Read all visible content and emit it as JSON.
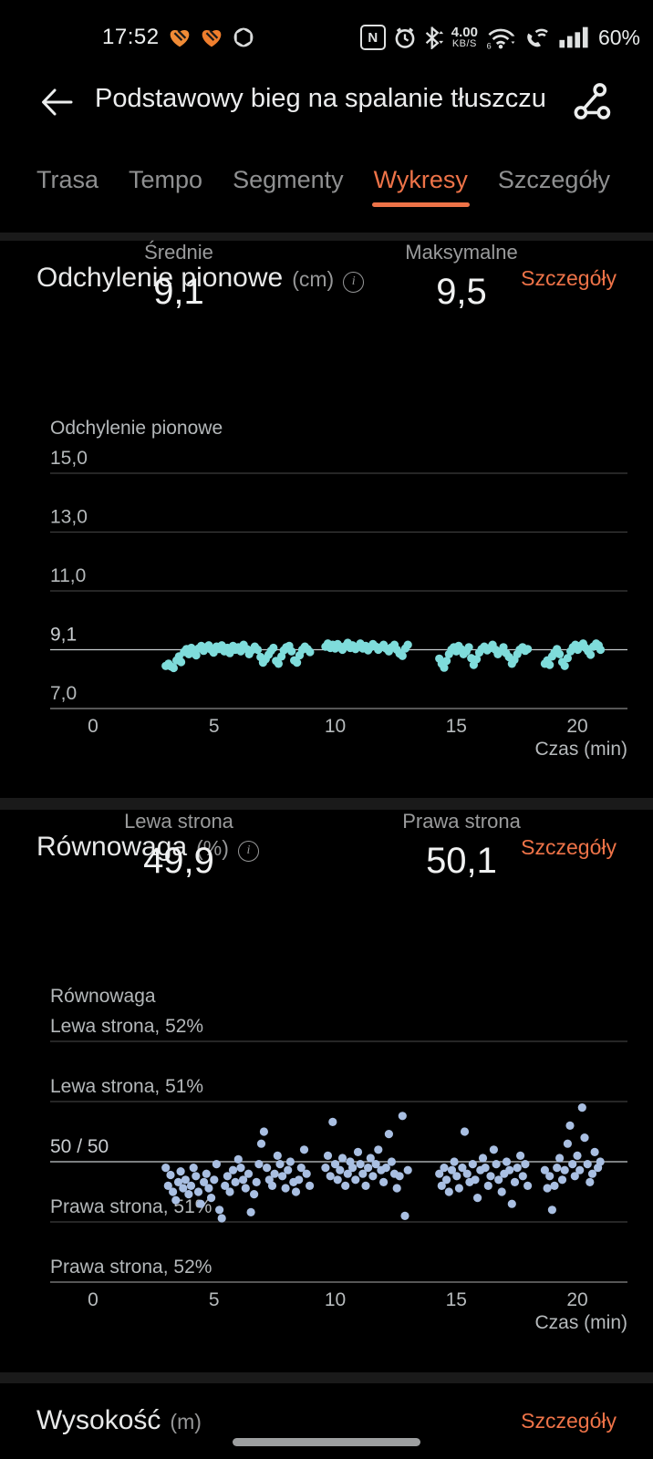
{
  "accent": "#ee7348",
  "status_bar": {
    "time": "17:52",
    "nfc_letter": "N",
    "net_speed_value": "4.00",
    "net_speed_unit": "KB/S",
    "wifi_number": "6",
    "battery": "60%"
  },
  "header": {
    "title": "Podstawowy bieg na spalanie tłuszczu"
  },
  "tabs": {
    "items": [
      {
        "label": "Trasa",
        "active": false
      },
      {
        "label": "Tempo",
        "active": false
      },
      {
        "label": "Segmenty",
        "active": false
      },
      {
        "label": "Wykresy",
        "active": true
      },
      {
        "label": "Szczegóły",
        "active": false
      }
    ]
  },
  "cards": [
    {
      "title": "Odchylenie pionowe",
      "unit": "(cm)",
      "details_label": "Szczegóły",
      "stats": [
        {
          "label": "Średnie",
          "value": "9,1"
        },
        {
          "label": "Maksymalne",
          "value": "9,5"
        }
      ]
    },
    {
      "title": "Równowaga",
      "unit": "(%)",
      "details_label": "Szczegóły",
      "stats": [
        {
          "label": "Lewa strona",
          "value": "49,9"
        },
        {
          "label": "Prawa strona",
          "value": "50,1"
        }
      ]
    }
  ],
  "partial_card": {
    "title": "Wysokość",
    "unit": "(m)",
    "details_label": "Szczegóły"
  },
  "chart_data": [
    {
      "type": "scatter",
      "title": "Odchylenie pionowe",
      "xlabel": "Czas (min)",
      "x_ticks": [
        0,
        5,
        10,
        15,
        20
      ],
      "x_range": [
        0,
        21.5
      ],
      "color": "#7fdcdb",
      "grid": true,
      "average": 9.1,
      "maximum": 9.5,
      "y_gridlines": [
        {
          "label": "15,0",
          "value": 15.0
        },
        {
          "label": "13,0",
          "value": 13.0
        },
        {
          "label": "11,0",
          "value": 11.0
        },
        {
          "label": "9,1",
          "value": 9.1,
          "highlight": true
        },
        {
          "label": "7,0",
          "value": 7.0
        }
      ],
      "points": [
        [
          3.0,
          8.52
        ],
        [
          3.12,
          8.6
        ],
        [
          3.22,
          8.5
        ],
        [
          3.33,
          8.45
        ],
        [
          3.45,
          8.72
        ],
        [
          3.55,
          8.86
        ],
        [
          3.64,
          8.66
        ],
        [
          3.76,
          9.02
        ],
        [
          3.86,
          9.12
        ],
        [
          3.96,
          8.94
        ],
        [
          4.06,
          9.16
        ],
        [
          4.16,
          9.0
        ],
        [
          4.26,
          8.9
        ],
        [
          4.36,
          9.14
        ],
        [
          4.47,
          9.22
        ],
        [
          4.57,
          9.06
        ],
        [
          4.67,
          9.18
        ],
        [
          4.78,
          9.24
        ],
        [
          4.88,
          9.1
        ],
        [
          4.98,
          9.0
        ],
        [
          5.1,
          9.2
        ],
        [
          5.2,
          9.12
        ],
        [
          5.32,
          9.24
        ],
        [
          5.42,
          9.04
        ],
        [
          5.55,
          9.16
        ],
        [
          5.65,
          8.98
        ],
        [
          5.78,
          9.22
        ],
        [
          5.88,
          9.1
        ],
        [
          6.0,
          9.18
        ],
        [
          6.1,
          9.04
        ],
        [
          6.22,
          9.26
        ],
        [
          6.35,
          9.12
        ],
        [
          6.45,
          8.94
        ],
        [
          6.55,
          9.08
        ],
        [
          6.68,
          9.2
        ],
        [
          6.8,
          9.1
        ],
        [
          6.92,
          8.84
        ],
        [
          7.02,
          8.64
        ],
        [
          7.13,
          8.76
        ],
        [
          7.25,
          8.92
        ],
        [
          7.35,
          9.06
        ],
        [
          7.45,
          9.16
        ],
        [
          7.56,
          8.7
        ],
        [
          7.66,
          8.6
        ],
        [
          7.78,
          8.86
        ],
        [
          7.88,
          9.08
        ],
        [
          7.98,
          9.18
        ],
        [
          8.1,
          9.22
        ],
        [
          8.2,
          9.04
        ],
        [
          8.31,
          8.72
        ],
        [
          8.42,
          8.64
        ],
        [
          8.53,
          8.9
        ],
        [
          8.64,
          9.1
        ],
        [
          8.75,
          9.2
        ],
        [
          8.86,
          9.12
        ],
        [
          8.96,
          9.02
        ],
        [
          9.6,
          9.2
        ],
        [
          9.7,
          9.3
        ],
        [
          9.8,
          9.16
        ],
        [
          9.9,
          9.26
        ],
        [
          10.0,
          9.14
        ],
        [
          10.1,
          9.28
        ],
        [
          10.2,
          9.2
        ],
        [
          10.3,
          9.1
        ],
        [
          10.42,
          9.22
        ],
        [
          10.52,
          9.32
        ],
        [
          10.62,
          9.16
        ],
        [
          10.72,
          9.24
        ],
        [
          10.84,
          9.12
        ],
        [
          10.94,
          9.2
        ],
        [
          11.04,
          9.3
        ],
        [
          11.14,
          9.14
        ],
        [
          11.26,
          9.22
        ],
        [
          11.36,
          9.08
        ],
        [
          11.46,
          9.18
        ],
        [
          11.56,
          9.28
        ],
        [
          11.68,
          9.2
        ],
        [
          11.78,
          9.1
        ],
        [
          11.9,
          9.18
        ],
        [
          12.0,
          9.26
        ],
        [
          12.1,
          9.14
        ],
        [
          12.22,
          9.04
        ],
        [
          12.33,
          9.18
        ],
        [
          12.45,
          9.26
        ],
        [
          12.55,
          9.1
        ],
        [
          12.66,
          8.96
        ],
        [
          12.78,
          8.88
        ],
        [
          12.9,
          9.14
        ],
        [
          13.0,
          9.26
        ],
        [
          14.3,
          8.78
        ],
        [
          14.4,
          8.6
        ],
        [
          14.5,
          8.46
        ],
        [
          14.6,
          8.7
        ],
        [
          14.7,
          8.94
        ],
        [
          14.8,
          9.1
        ],
        [
          14.9,
          9.18
        ],
        [
          15.0,
          9.04
        ],
        [
          15.1,
          9.22
        ],
        [
          15.2,
          9.12
        ],
        [
          15.3,
          8.94
        ],
        [
          15.42,
          9.04
        ],
        [
          15.52,
          9.18
        ],
        [
          15.62,
          8.8
        ],
        [
          15.72,
          8.56
        ],
        [
          15.84,
          8.76
        ],
        [
          15.95,
          9.0
        ],
        [
          16.05,
          9.12
        ],
        [
          16.16,
          9.2
        ],
        [
          16.28,
          9.08
        ],
        [
          16.4,
          9.16
        ],
        [
          16.5,
          9.26
        ],
        [
          16.62,
          9.1
        ],
        [
          16.72,
          8.94
        ],
        [
          16.84,
          9.04
        ],
        [
          16.95,
          9.18
        ],
        [
          17.06,
          8.98
        ],
        [
          17.18,
          8.84
        ],
        [
          17.3,
          8.6
        ],
        [
          17.4,
          8.74
        ],
        [
          17.52,
          8.94
        ],
        [
          17.62,
          9.1
        ],
        [
          17.74,
          9.18
        ],
        [
          17.85,
          9.06
        ],
        [
          17.95,
          9.12
        ],
        [
          18.66,
          8.6
        ],
        [
          18.76,
          8.72
        ],
        [
          18.86,
          8.56
        ],
        [
          18.96,
          8.86
        ],
        [
          19.06,
          9.0
        ],
        [
          19.16,
          9.12
        ],
        [
          19.27,
          8.94
        ],
        [
          19.38,
          8.66
        ],
        [
          19.48,
          8.52
        ],
        [
          19.6,
          8.8
        ],
        [
          19.72,
          9.04
        ],
        [
          19.82,
          9.18
        ],
        [
          19.92,
          9.26
        ],
        [
          20.02,
          9.1
        ],
        [
          20.12,
          9.22
        ],
        [
          20.24,
          9.3
        ],
        [
          20.34,
          9.16
        ],
        [
          20.45,
          9.04
        ],
        [
          20.55,
          8.92
        ],
        [
          20.66,
          9.2
        ],
        [
          20.78,
          9.3
        ],
        [
          20.88,
          9.24
        ],
        [
          20.96,
          9.1
        ]
      ]
    },
    {
      "type": "scatter",
      "title": "Równowaga",
      "xlabel": "Czas (min)",
      "x_ticks": [
        0,
        5,
        10,
        15,
        20
      ],
      "x_range": [
        0,
        21.5
      ],
      "color": "#a9bfe2",
      "grid": true,
      "left_avg": 49.9,
      "right_avg": 50.1,
      "y_gridlines": [
        {
          "label": "Lewa strona, 52%",
          "value": 52
        },
        {
          "label": "Lewa strona, 51%",
          "value": 51
        },
        {
          "label": "50 / 50",
          "value": 50,
          "highlight": true
        },
        {
          "label": "Prawa strona, 51%",
          "value": 49
        },
        {
          "label": "Prawa strona, 52%",
          "value": 48
        }
      ],
      "points": [
        [
          3.0,
          49.9
        ],
        [
          3.1,
          49.6
        ],
        [
          3.2,
          49.78
        ],
        [
          3.3,
          49.5
        ],
        [
          3.42,
          49.36
        ],
        [
          3.52,
          49.66
        ],
        [
          3.62,
          49.84
        ],
        [
          3.72,
          49.56
        ],
        [
          3.82,
          49.7
        ],
        [
          3.95,
          49.46
        ],
        [
          4.05,
          49.6
        ],
        [
          4.15,
          49.9
        ],
        [
          4.25,
          49.76
        ],
        [
          4.35,
          49.5
        ],
        [
          4.45,
          49.3
        ],
        [
          4.58,
          49.66
        ],
        [
          4.68,
          49.8
        ],
        [
          4.78,
          49.56
        ],
        [
          4.88,
          49.4
        ],
        [
          5.0,
          49.7
        ],
        [
          5.1,
          49.96
        ],
        [
          5.22,
          49.2
        ],
        [
          5.32,
          49.06
        ],
        [
          5.45,
          49.6
        ],
        [
          5.55,
          49.76
        ],
        [
          5.65,
          49.5
        ],
        [
          5.78,
          49.86
        ],
        [
          5.88,
          49.66
        ],
        [
          6.0,
          50.04
        ],
        [
          6.1,
          49.9
        ],
        [
          6.2,
          49.7
        ],
        [
          6.3,
          49.56
        ],
        [
          6.42,
          49.8
        ],
        [
          6.52,
          49.16
        ],
        [
          6.65,
          49.46
        ],
        [
          6.75,
          49.66
        ],
        [
          6.85,
          49.96
        ],
        [
          6.95,
          50.3
        ],
        [
          7.06,
          50.5
        ],
        [
          7.18,
          49.9
        ],
        [
          7.28,
          49.7
        ],
        [
          7.4,
          49.6
        ],
        [
          7.5,
          49.8
        ],
        [
          7.62,
          50.1
        ],
        [
          7.72,
          49.96
        ],
        [
          7.82,
          49.76
        ],
        [
          7.95,
          49.56
        ],
        [
          8.05,
          49.86
        ],
        [
          8.15,
          50.0
        ],
        [
          8.28,
          49.66
        ],
        [
          8.38,
          49.5
        ],
        [
          8.5,
          49.7
        ],
        [
          8.6,
          49.9
        ],
        [
          8.72,
          50.2
        ],
        [
          8.82,
          49.8
        ],
        [
          8.95,
          49.6
        ],
        [
          9.6,
          49.9
        ],
        [
          9.7,
          50.1
        ],
        [
          9.8,
          49.76
        ],
        [
          9.9,
          50.66
        ],
        [
          10.0,
          49.96
        ],
        [
          10.1,
          49.7
        ],
        [
          10.2,
          49.86
        ],
        [
          10.3,
          50.06
        ],
        [
          10.42,
          49.6
        ],
        [
          10.52,
          49.8
        ],
        [
          10.62,
          50.0
        ],
        [
          10.72,
          49.9
        ],
        [
          10.84,
          49.7
        ],
        [
          10.94,
          50.16
        ],
        [
          11.04,
          49.96
        ],
        [
          11.14,
          49.8
        ],
        [
          11.26,
          49.6
        ],
        [
          11.36,
          49.9
        ],
        [
          11.46,
          50.06
        ],
        [
          11.56,
          49.76
        ],
        [
          11.68,
          49.96
        ],
        [
          11.78,
          50.2
        ],
        [
          11.9,
          49.86
        ],
        [
          12.0,
          49.66
        ],
        [
          12.1,
          49.9
        ],
        [
          12.22,
          50.46
        ],
        [
          12.33,
          50.0
        ],
        [
          12.45,
          49.8
        ],
        [
          12.55,
          49.56
        ],
        [
          12.66,
          49.76
        ],
        [
          12.78,
          50.76
        ],
        [
          12.88,
          49.1
        ],
        [
          13.0,
          49.86
        ],
        [
          14.3,
          49.8
        ],
        [
          14.4,
          49.6
        ],
        [
          14.5,
          49.9
        ],
        [
          14.6,
          49.7
        ],
        [
          14.7,
          49.5
        ],
        [
          14.82,
          49.86
        ],
        [
          14.92,
          50.0
        ],
        [
          15.02,
          49.76
        ],
        [
          15.12,
          49.56
        ],
        [
          15.25,
          49.9
        ],
        [
          15.35,
          50.5
        ],
        [
          15.45,
          49.8
        ],
        [
          15.55,
          49.66
        ],
        [
          15.68,
          49.96
        ],
        [
          15.78,
          49.7
        ],
        [
          15.88,
          49.4
        ],
        [
          16.0,
          49.86
        ],
        [
          16.1,
          50.06
        ],
        [
          16.2,
          49.9
        ],
        [
          16.32,
          49.6
        ],
        [
          16.42,
          49.76
        ],
        [
          16.55,
          50.2
        ],
        [
          16.65,
          49.96
        ],
        [
          16.75,
          49.7
        ],
        [
          16.88,
          49.5
        ],
        [
          16.98,
          49.8
        ],
        [
          17.08,
          50.0
        ],
        [
          17.2,
          49.86
        ],
        [
          17.3,
          49.3
        ],
        [
          17.42,
          49.66
        ],
        [
          17.52,
          49.9
        ],
        [
          17.65,
          50.1
        ],
        [
          17.75,
          49.76
        ],
        [
          17.85,
          49.96
        ],
        [
          17.95,
          49.6
        ],
        [
          18.66,
          49.86
        ],
        [
          18.76,
          49.56
        ],
        [
          18.86,
          49.76
        ],
        [
          18.96,
          49.2
        ],
        [
          19.06,
          49.6
        ],
        [
          19.16,
          49.9
        ],
        [
          19.27,
          50.06
        ],
        [
          19.38,
          49.7
        ],
        [
          19.48,
          49.86
        ],
        [
          19.6,
          50.3
        ],
        [
          19.7,
          50.6
        ],
        [
          19.8,
          49.96
        ],
        [
          19.9,
          49.76
        ],
        [
          20.0,
          50.1
        ],
        [
          20.1,
          49.86
        ],
        [
          20.2,
          50.9
        ],
        [
          20.3,
          50.4
        ],
        [
          20.42,
          49.96
        ],
        [
          20.52,
          49.66
        ],
        [
          20.62,
          49.8
        ],
        [
          20.72,
          50.16
        ],
        [
          20.85,
          49.9
        ],
        [
          20.95,
          50.0
        ]
      ]
    }
  ]
}
